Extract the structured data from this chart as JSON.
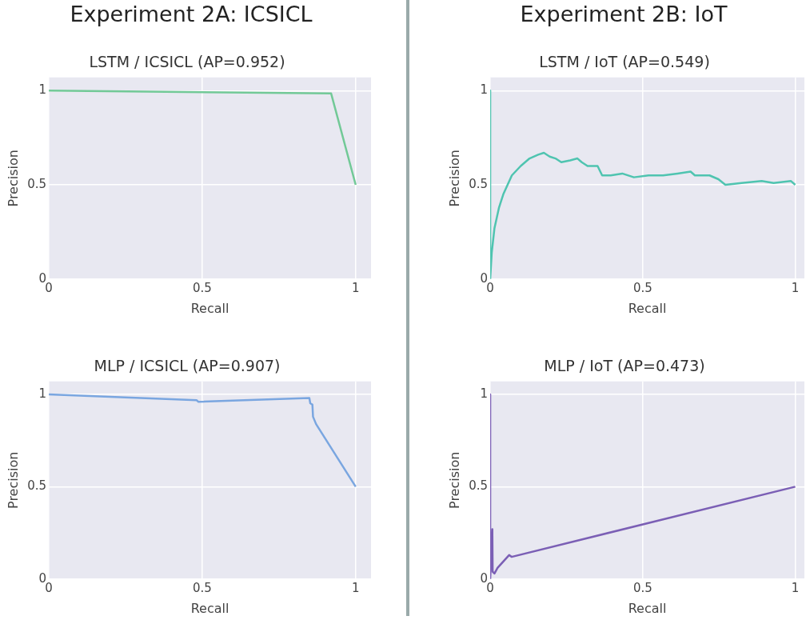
{
  "chart_data": [
    {
      "type": "line",
      "subtitle": "Experiment 2A: ICSICL",
      "title": "LSTM / ICSICL (AP=0.952)",
      "xlabel": "Recall",
      "ylabel": "Precision",
      "xlim": [
        0,
        1.05
      ],
      "ylim": [
        0,
        1.07
      ],
      "xticks": [
        0,
        0.5,
        1
      ],
      "yticks": [
        0,
        0.5,
        1
      ],
      "grid": true,
      "marker": "none",
      "series": [
        {
          "color": "#72c997",
          "x": [
            0,
            0.92,
            1
          ],
          "values": [
            1,
            0.985,
            0.5
          ]
        }
      ]
    },
    {
      "type": "line",
      "subtitle": "Experiment 2B: IoT",
      "title": "LSTM / IoT (AP=0.549)",
      "xlabel": "Recall",
      "ylabel": "Precision",
      "xlim": [
        0,
        1.03
      ],
      "ylim": [
        0,
        1.07
      ],
      "xticks": [
        0,
        0.5,
        1
      ],
      "yticks": [
        0,
        0.5,
        1
      ],
      "grid": true,
      "marker": "none",
      "series": [
        {
          "color": "#4fc4b0",
          "x": [
            0,
            0,
            0.005,
            0.014,
            0.029,
            0.043,
            0.071,
            0.1,
            0.129,
            0.157,
            0.176,
            0.195,
            0.214,
            0.233,
            0.262,
            0.286,
            0.3,
            0.319,
            0.338,
            0.352,
            0.367,
            0.395,
            0.433,
            0.471,
            0.519,
            0.567,
            0.614,
            0.657,
            0.671,
            0.719,
            0.748,
            0.771,
            0.824,
            0.89,
            0.929,
            0.986,
            1
          ],
          "values": [
            1,
            0,
            0.14,
            0.27,
            0.38,
            0.45,
            0.55,
            0.6,
            0.64,
            0.66,
            0.67,
            0.65,
            0.64,
            0.62,
            0.63,
            0.64,
            0.62,
            0.6,
            0.6,
            0.6,
            0.55,
            0.55,
            0.56,
            0.54,
            0.55,
            0.55,
            0.56,
            0.57,
            0.55,
            0.55,
            0.53,
            0.5,
            0.51,
            0.52,
            0.51,
            0.52,
            0.5
          ]
        }
      ]
    },
    {
      "type": "line",
      "title": "MLP / ICSICL (AP=0.907)",
      "xlabel": "Recall",
      "ylabel": "Precision",
      "xlim": [
        0,
        1.05
      ],
      "ylim": [
        0,
        1.07
      ],
      "xticks": [
        0,
        0.5,
        1
      ],
      "yticks": [
        0,
        0.5,
        1
      ],
      "grid": true,
      "marker": "none",
      "series": [
        {
          "color": "#7aa6e0",
          "x": [
            0,
            0.482,
            0.487,
            0.849,
            0.852,
            0.859,
            0.861,
            0.871,
            1
          ],
          "values": [
            1,
            0.968,
            0.96,
            0.98,
            0.952,
            0.944,
            0.879,
            0.839,
            0.5
          ]
        }
      ]
    },
    {
      "type": "line",
      "title": "MLP / IoT (AP=0.473)",
      "xlabel": "Recall",
      "ylabel": "Precision",
      "xlim": [
        0,
        1.03
      ],
      "ylim": [
        0,
        1.07
      ],
      "xticks": [
        0,
        0.5,
        1
      ],
      "yticks": [
        0,
        0.5,
        1
      ],
      "grid": true,
      "marker": "none",
      "series": [
        {
          "color": "#7b5fb5",
          "x": [
            0,
            0,
            0.007,
            0.008,
            0.014,
            0.024,
            0.062,
            0.07,
            1
          ],
          "values": [
            1,
            0,
            0.27,
            0.04,
            0.03,
            0.06,
            0.13,
            0.12,
            0.5
          ]
        }
      ]
    }
  ]
}
